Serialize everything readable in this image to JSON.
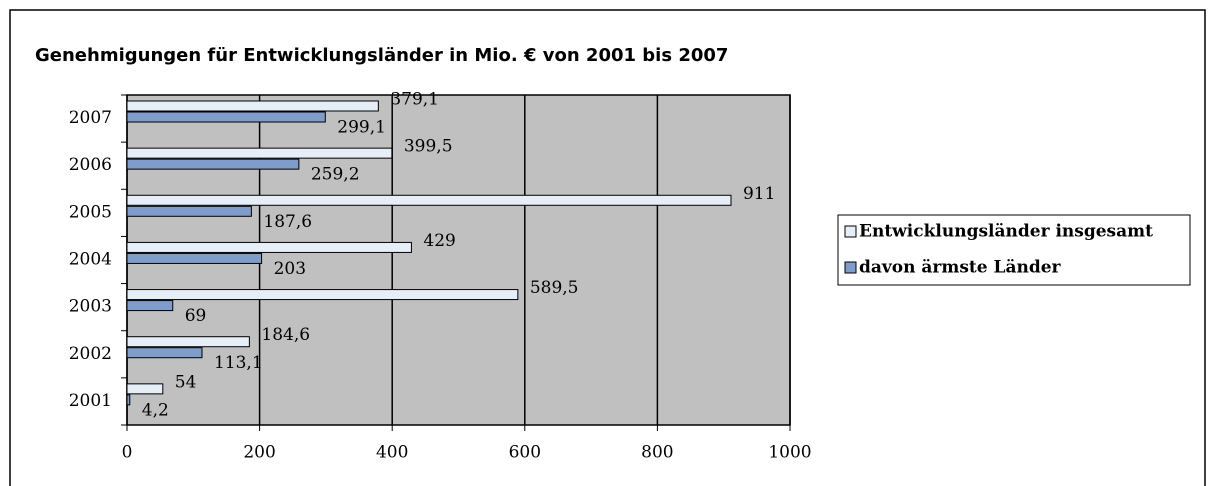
{
  "chart_data": {
    "type": "bar",
    "orientation": "horizontal",
    "title": "Genehmigungen für Entwicklungsländer in Mio. € von 2001 bis 2007",
    "categories": [
      "2001",
      "2002",
      "2003",
      "2004",
      "2005",
      "2006",
      "2007"
    ],
    "series": [
      {
        "name": "Entwicklungsländer insgesamt",
        "color": "#e6eef8",
        "values": [
          54,
          184.6,
          589.5,
          429,
          911,
          399.5,
          379.1
        ],
        "value_labels": [
          "54",
          "184,6",
          "589,5",
          "429",
          "911",
          "399,5",
          "379,1"
        ]
      },
      {
        "name": "davon ärmste Länder",
        "color": "#7f9ccb",
        "values": [
          4.2,
          113.1,
          69,
          203,
          187.6,
          259.2,
          299.1
        ],
        "value_labels": [
          "4,2",
          "113,1",
          "69",
          "203",
          "187,6",
          "259,2",
          "299,1"
        ]
      }
    ],
    "xlim": [
      0,
      1000
    ],
    "xticks": [
      0,
      200,
      400,
      600,
      800,
      1000
    ],
    "grid": true,
    "legend": "right",
    "plot_background": "#c0c0c0"
  }
}
